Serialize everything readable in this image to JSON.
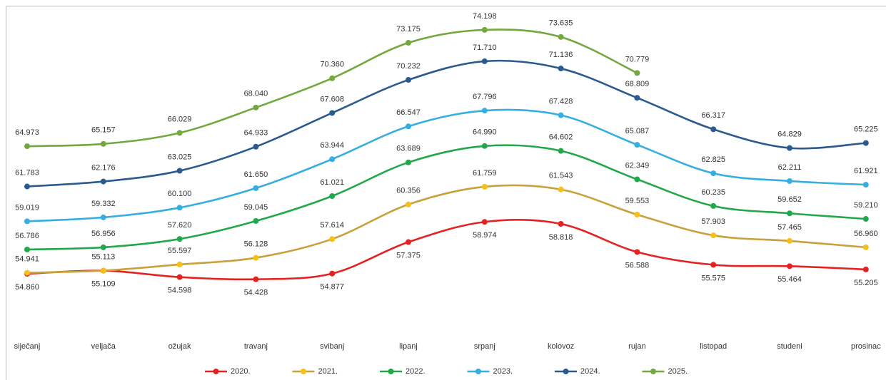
{
  "chart_data": {
    "type": "line",
    "categories": [
      "siječanj",
      "veljača",
      "ožujak",
      "travanj",
      "svibanj",
      "lipanj",
      "srpanj",
      "kolovoz",
      "rujan",
      "listopad",
      "studeni",
      "prosinac"
    ],
    "ylim": [
      50,
      76
    ],
    "series": [
      {
        "name": "2020.",
        "color": "#e32322",
        "values": [
          54.86,
          55.109,
          54.598,
          54.428,
          54.877,
          57.375,
          58.974,
          58.818,
          56.588,
          55.575,
          55.464,
          55.205
        ],
        "value_labels": [
          "54.860",
          "55.109",
          "54.598",
          "54.428",
          "54.877",
          "57.375",
          "58.974",
          "58.818",
          "56.588",
          "55.575",
          "55.464",
          "55.205"
        ]
      },
      {
        "name": "2021.",
        "color": "#f5c018",
        "values": [
          54.941,
          55.113,
          55.597,
          56.128,
          57.614,
          60.356,
          61.759,
          61.543,
          59.553,
          57.903,
          57.465,
          56.96
        ],
        "value_labels": [
          "54.941",
          "55.113",
          "55.597",
          "56.128",
          "57.614",
          "60.356",
          "61.759",
          "61.543",
          "59.553",
          "57.903",
          "57.465",
          "56.960"
        ]
      },
      {
        "name": "2022.",
        "color": "#22a84a",
        "values": [
          56.786,
          56.956,
          57.62,
          59.045,
          61.021,
          63.689,
          64.99,
          64.602,
          62.349,
          60.235,
          59.652,
          59.21
        ],
        "value_labels": [
          "56.786",
          "56.956",
          "57.620",
          "59.045",
          "61.021",
          "63.689",
          "64.990",
          "64.602",
          "62.349",
          "60.235",
          "59.652",
          "59.210"
        ]
      },
      {
        "name": "2023.",
        "color": "#36aee0",
        "values": [
          59.019,
          59.332,
          60.1,
          61.65,
          63.944,
          66.547,
          67.796,
          67.428,
          65.087,
          62.825,
          62.211,
          61.921
        ],
        "value_labels": [
          "59.019",
          "59.332",
          "60.100",
          "61.650",
          "63.944",
          "66.547",
          "67.796",
          "67.428",
          "65.087",
          "62.825",
          "62.211",
          "61.921"
        ]
      },
      {
        "name": "2024.",
        "color": "#2b5a8f",
        "values": [
          61.783,
          62.176,
          63.025,
          64.933,
          67.608,
          70.232,
          71.71,
          71.136,
          68.809,
          66.317,
          64.829,
          65.225
        ],
        "value_labels": [
          "61.783",
          "62.176",
          "63.025",
          "64.933",
          "67.608",
          "70.232",
          "71.710",
          "71.136",
          "68.809",
          "66.317",
          "64.829",
          "65.225"
        ]
      },
      {
        "name": "2025.",
        "color": "#72a83e",
        "values": [
          64.973,
          65.157,
          66.029,
          68.04,
          70.36,
          73.175,
          74.198,
          73.635,
          70.779,
          null,
          null,
          null
        ],
        "value_labels": [
          "64.973",
          "65.157",
          "66.029",
          "68.040",
          "70.360",
          "73.175",
          "74.198",
          "73.635",
          "70.779",
          null,
          null,
          null
        ]
      }
    ]
  }
}
